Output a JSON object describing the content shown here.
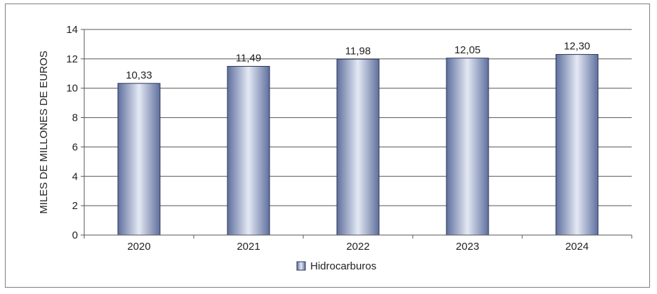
{
  "chart_data": {
    "type": "bar",
    "categories": [
      "2020",
      "2021",
      "2022",
      "2023",
      "2024"
    ],
    "series": [
      {
        "name": "Hidrocarburos",
        "values": [
          10.33,
          11.49,
          11.98,
          12.05,
          12.3
        ]
      }
    ],
    "data_labels": [
      "10,33",
      "11,49",
      "11,98",
      "12,05",
      "12,30"
    ],
    "ylabel": "MILES DE MILLONES DE EUROS",
    "ylim": [
      0,
      14
    ],
    "yticks": [
      0,
      2,
      4,
      6,
      8,
      10,
      12,
      14
    ],
    "grid": true,
    "legend": "bottom-center",
    "colors": {
      "bar_dark": "#5f6f9e",
      "bar_light": "#e4e9f4",
      "grid": "#555555",
      "axis": "#555555"
    }
  }
}
